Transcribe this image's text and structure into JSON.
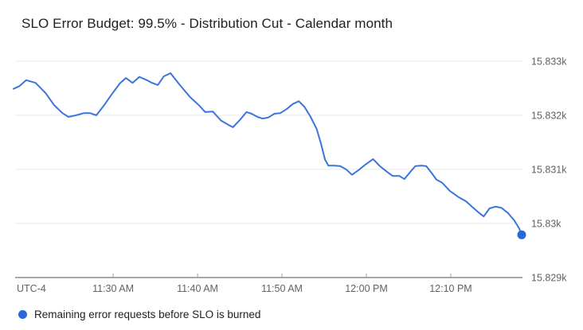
{
  "title": "SLO Error Budget: 99.5% - Distribution Cut - Calendar month",
  "legend": {
    "label": "Remaining error requests before SLO is burned"
  },
  "colors": {
    "line": "#3b74dc",
    "end_dot": "#2a68d8",
    "legend_dot": "#2a68d8",
    "gridline": "#e8e8e8",
    "axis_line": "#757575",
    "tick_mark": "#9e9e9e",
    "tick_label": "#5f6368",
    "background": "#ffffff"
  },
  "chart_data": {
    "type": "line",
    "title": "SLO Error Budget: 99.5% - Distribution Cut - Calendar month",
    "x_unit": "minutes after 11:00 AM",
    "timezone_label": "UTC-4",
    "xlim": [
      18.2,
      78.4
    ],
    "ylim": [
      15829,
      15833
    ],
    "grid": true,
    "legend_position": "bottom-left",
    "x_axis": {
      "ticks": [
        {
          "t": 30,
          "label": "11:30 AM"
        },
        {
          "t": 40,
          "label": "11:40 AM"
        },
        {
          "t": 50,
          "label": "11:50 AM"
        },
        {
          "t": 60,
          "label": "12:00 PM"
        },
        {
          "t": 70,
          "label": "12:10 PM"
        }
      ]
    },
    "y_axis": {
      "ticks": [
        {
          "v": 15833,
          "label": "15.833k"
        },
        {
          "v": 15832,
          "label": "15.832k"
        },
        {
          "v": 15831,
          "label": "15.831k"
        },
        {
          "v": 15830,
          "label": "15.83k"
        },
        {
          "v": 15829,
          "label": "15.829k"
        }
      ]
    },
    "series": [
      {
        "name": "Remaining error requests before SLO is burned",
        "end_marker": true,
        "points": [
          [
            18.2,
            15832.49
          ],
          [
            18.9,
            15832.54
          ],
          [
            19.7,
            15832.65
          ],
          [
            20.8,
            15832.6
          ],
          [
            22.0,
            15832.41
          ],
          [
            23.0,
            15832.19
          ],
          [
            24.0,
            15832.04
          ],
          [
            24.7,
            15831.97
          ],
          [
            25.6,
            15832.0
          ],
          [
            26.5,
            15832.04
          ],
          [
            27.3,
            15832.04
          ],
          [
            28.0,
            15832.0
          ],
          [
            28.9,
            15832.18
          ],
          [
            29.8,
            15832.38
          ],
          [
            30.8,
            15832.59
          ],
          [
            31.5,
            15832.69
          ],
          [
            32.3,
            15832.6
          ],
          [
            33.1,
            15832.71
          ],
          [
            34.0,
            15832.65
          ],
          [
            34.6,
            15832.6
          ],
          [
            35.3,
            15832.56
          ],
          [
            36.0,
            15832.72
          ],
          [
            36.8,
            15832.78
          ],
          [
            37.9,
            15832.56
          ],
          [
            39.1,
            15832.34
          ],
          [
            40.2,
            15832.18
          ],
          [
            40.9,
            15832.06
          ],
          [
            41.8,
            15832.07
          ],
          [
            42.8,
            15831.9
          ],
          [
            43.8,
            15831.81
          ],
          [
            44.2,
            15831.78
          ],
          [
            45.0,
            15831.91
          ],
          [
            45.8,
            15832.06
          ],
          [
            46.4,
            15832.03
          ],
          [
            47.1,
            15831.97
          ],
          [
            47.7,
            15831.94
          ],
          [
            48.4,
            15831.96
          ],
          [
            49.1,
            15832.03
          ],
          [
            49.8,
            15832.04
          ],
          [
            50.6,
            15832.12
          ],
          [
            51.3,
            15832.21
          ],
          [
            52.0,
            15832.26
          ],
          [
            52.7,
            15832.15
          ],
          [
            53.4,
            15831.97
          ],
          [
            54.1,
            15831.75
          ],
          [
            54.6,
            15831.49
          ],
          [
            55.1,
            15831.18
          ],
          [
            55.5,
            15831.07
          ],
          [
            56.2,
            15831.07
          ],
          [
            56.9,
            15831.06
          ],
          [
            57.6,
            15831.0
          ],
          [
            58.3,
            15830.9
          ],
          [
            59.1,
            15830.99
          ],
          [
            59.9,
            15831.09
          ],
          [
            60.8,
            15831.19
          ],
          [
            61.6,
            15831.06
          ],
          [
            62.4,
            15830.96
          ],
          [
            63.1,
            15830.88
          ],
          [
            63.9,
            15830.88
          ],
          [
            64.5,
            15830.82
          ],
          [
            65.3,
            15830.97
          ],
          [
            65.8,
            15831.06
          ],
          [
            66.5,
            15831.07
          ],
          [
            67.1,
            15831.06
          ],
          [
            67.7,
            15830.94
          ],
          [
            68.3,
            15830.81
          ],
          [
            69.0,
            15830.75
          ],
          [
            69.9,
            15830.6
          ],
          [
            70.9,
            15830.49
          ],
          [
            71.8,
            15830.41
          ],
          [
            72.5,
            15830.31
          ],
          [
            73.4,
            15830.19
          ],
          [
            73.9,
            15830.13
          ],
          [
            74.6,
            15830.28
          ],
          [
            75.3,
            15830.31
          ],
          [
            76.0,
            15830.29
          ],
          [
            76.8,
            15830.19
          ],
          [
            77.5,
            15830.06
          ],
          [
            78.1,
            15829.91
          ],
          [
            78.4,
            15829.79
          ]
        ]
      }
    ]
  }
}
